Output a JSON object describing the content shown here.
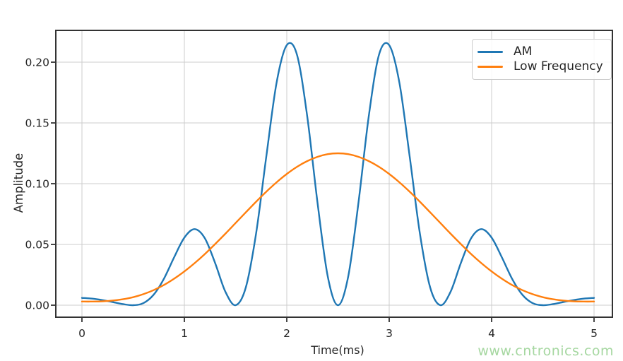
{
  "figure": {
    "background": "#ffffff",
    "xlabel": "Time(ms)",
    "ylabel": "Amplitude"
  },
  "watermark": {
    "text": "www.cntronics.com",
    "color": "#a5d7a0"
  },
  "colors": {
    "grid": "#cccccc",
    "spine": "#333333",
    "tick": "#333333",
    "text": "#262626",
    "plot_background": "#ffffff",
    "am_line": "#1f77b4",
    "low_frequency_line": "#ff7f0e"
  },
  "chart_data": {
    "type": "line",
    "title": "",
    "xlabel": "Time(ms)",
    "ylabel": "Amplitude",
    "grid": true,
    "legend_position": "upper right",
    "xlim": [
      -0.255,
      5.18
    ],
    "ylim": [
      -0.0099,
      0.2262
    ],
    "x_ticks": [
      0,
      1,
      2,
      3,
      4,
      5
    ],
    "x_tick_labels": [
      "0",
      "1",
      "2",
      "3",
      "4",
      "5"
    ],
    "y_ticks": [
      0.0,
      0.05,
      0.1,
      0.15,
      0.2
    ],
    "y_tick_labels": [
      "0.00",
      "0.05",
      "0.10",
      "0.15",
      "0.20"
    ],
    "x": [
      0,
      0.1,
      0.2,
      0.3,
      0.4,
      0.5,
      0.6,
      0.7,
      0.8,
      0.9,
      1,
      1.1,
      1.2,
      1.3,
      1.4,
      1.5,
      1.6,
      1.7,
      1.8,
      1.9,
      2,
      2.1,
      2.2,
      2.3,
      2.4,
      2.5,
      2.6,
      2.7,
      2.8,
      2.9,
      3,
      3.1,
      3.2,
      3.3,
      3.4,
      3.5,
      3.6,
      3.7,
      3.8,
      3.9,
      4,
      4.1,
      4.2,
      4.3,
      4.4,
      4.5,
      4.6,
      4.7,
      4.8,
      4.9,
      5
    ],
    "series": [
      {
        "name": "AM",
        "color": "#1f77b4",
        "values": [
          0.006,
          0.0054,
          0.0042,
          0.0026,
          0.0009,
          0,
          0.0017,
          0.0086,
          0.0217,
          0.0394,
          0.0556,
          0.0626,
          0.0551,
          0.0348,
          0.0112,
          0,
          0.0146,
          0.0588,
          0.1223,
          0.1829,
          0.214,
          0.206,
          0.1552,
          0.0844,
          0.0237,
          0,
          0.0237,
          0.0844,
          0.1552,
          0.206,
          0.214,
          0.1829,
          0.1223,
          0.0588,
          0.0146,
          0,
          0.0112,
          0.0348,
          0.0551,
          0.0626,
          0.0556,
          0.0394,
          0.0217,
          0.0086,
          0.0017,
          0,
          0.0009,
          0.0026,
          0.0042,
          0.0054,
          0.006
        ]
      },
      {
        "name": "Low Frequency",
        "color": "#ff7f0e",
        "values": [
          0.003,
          0.003,
          0.0032,
          0.0038,
          0.0049,
          0.0066,
          0.0091,
          0.0124,
          0.0166,
          0.0218,
          0.0278,
          0.0346,
          0.0421,
          0.0503,
          0.0588,
          0.0676,
          0.0764,
          0.0851,
          0.0934,
          0.1011,
          0.108,
          0.1139,
          0.1186,
          0.1221,
          0.1243,
          0.125,
          0.1243,
          0.1221,
          0.1186,
          0.1139,
          0.108,
          0.1011,
          0.0934,
          0.0851,
          0.0764,
          0.0676,
          0.0588,
          0.0503,
          0.0421,
          0.0346,
          0.0278,
          0.0218,
          0.0166,
          0.0124,
          0.0091,
          0.0066,
          0.0049,
          0.0038,
          0.0032,
          0.003,
          0.003
        ]
      }
    ]
  }
}
